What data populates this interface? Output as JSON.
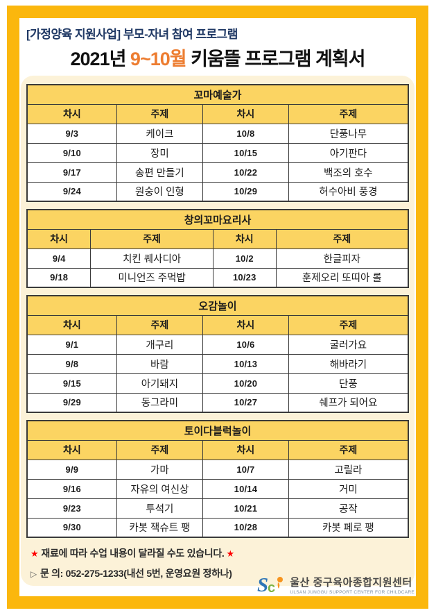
{
  "page": {
    "subtitle": "[가정양육 지원사업] 부모-자녀 참여 프로그램",
    "title_prefix": "2021년 ",
    "title_highlight": "9~10월",
    "title_suffix": " 키움뜰 프로그램 계획서"
  },
  "columns": [
    "차시",
    "주제",
    "차시",
    "주제"
  ],
  "tables": [
    {
      "title": "꼬마예술가",
      "rows": [
        [
          "9/3",
          "케이크",
          "10/8",
          "단풍나무"
        ],
        [
          "9/10",
          "장미",
          "10/15",
          "아기판다"
        ],
        [
          "9/17",
          "송편 만들기",
          "10/22",
          "백조의 호수"
        ],
        [
          "9/24",
          "원숭이 인형",
          "10/29",
          "허수아비 풍경"
        ]
      ]
    },
    {
      "title": "창의꼬마요리사",
      "rows": [
        [
          "9/4",
          "치킨 퀘사디아",
          "10/2",
          "한글피자"
        ],
        [
          "9/18",
          "미니언즈 주먹밥",
          "10/23",
          "훈제오리 또띠아 롤"
        ]
      ]
    },
    {
      "title": "오감놀이",
      "rows": [
        [
          "9/1",
          "개구리",
          "10/6",
          "굴러가요"
        ],
        [
          "9/8",
          "바람",
          "10/13",
          "해바라기"
        ],
        [
          "9/15",
          "아기돼지",
          "10/20",
          "단풍"
        ],
        [
          "9/29",
          "동그라미",
          "10/27",
          "쉐프가 되어요"
        ]
      ]
    },
    {
      "title": "토이다블럭놀이",
      "rows": [
        [
          "9/9",
          "가마",
          "10/7",
          "고릴라"
        ],
        [
          "9/16",
          "자유의 여신상",
          "10/14",
          "거미"
        ],
        [
          "9/23",
          "투석기",
          "10/21",
          "공작"
        ],
        [
          "9/30",
          "카봇 잭슈트 팽",
          "10/28",
          "카봇 페로 팽"
        ]
      ]
    }
  ],
  "notes": {
    "star": "★",
    "note1": "재료에 따라 수업 내용이 달라질 수도 있습니다.",
    "bullet": "▷",
    "note2": "문 의: 052-275-1233(내선  5번, 운영요원 정하나)"
  },
  "logo": {
    "mark": "sc-childcare-logo",
    "name_ko": "울산 중구육아종합지원센터",
    "name_en": "ULSAN JUNGGU SUPPORT CENTER FOR CHILDCARE"
  },
  "colors": {
    "frame_amber": "#FBB70D",
    "panel_cream": "#FCF2D8",
    "table_yellow": "#FBD462",
    "table_border": "#3A3A3A",
    "subtitle_navy": "#1F3864",
    "highlight_orange": "#ED7D31",
    "star_red": "#FF0000",
    "logo_blue": "#2E75B6",
    "logo_green": "#7CB342",
    "logo_orange": "#F7941D"
  }
}
